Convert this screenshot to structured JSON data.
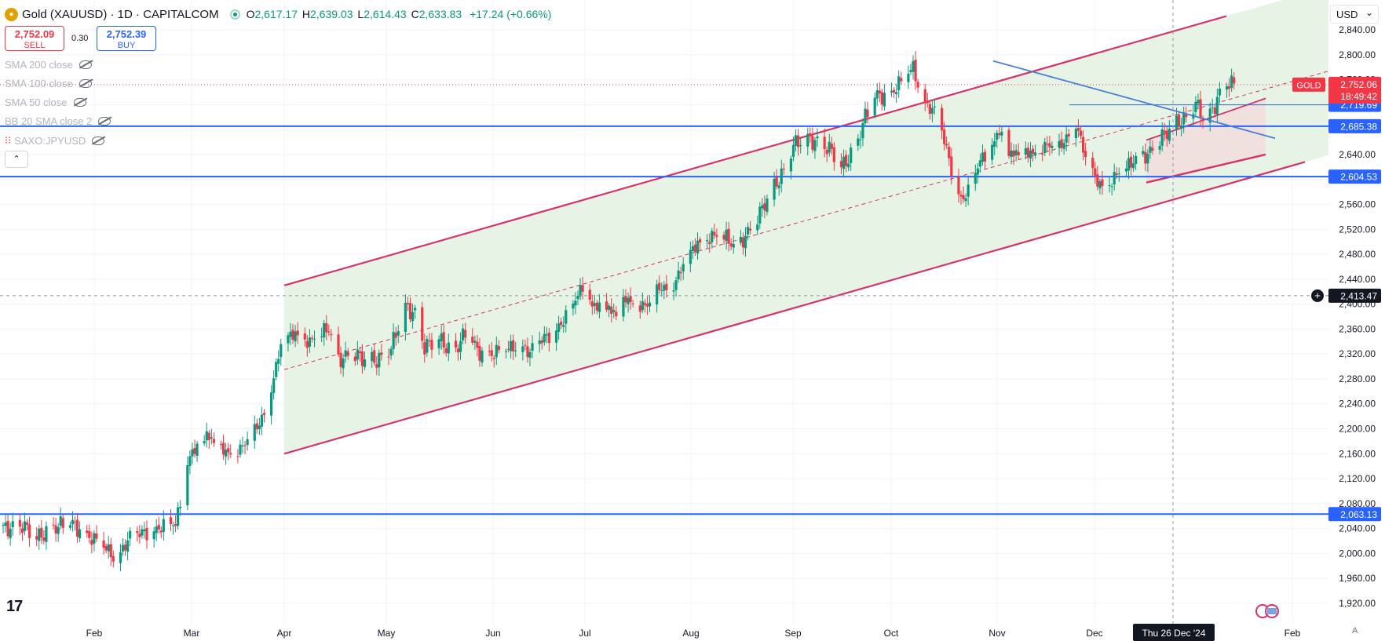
{
  "header": {
    "title": "Gold (XAUUSD) · 1D · CAPITALCOM",
    "open_label": "O",
    "open": "2,617.17",
    "high_label": "H",
    "high": "2,639.03",
    "low_label": "L",
    "low": "2,614.43",
    "close_label": "C",
    "close": "2,633.83",
    "change": "+17.24 (+0.66%)"
  },
  "trade": {
    "sell_price": "2,752.09",
    "sell_label": "SELL",
    "spread": "0.30",
    "buy_price": "2,752.39",
    "buy_label": "BUY"
  },
  "indicators": [
    "SMA 200 close",
    "SMA 100 close",
    "SMA 50 close",
    "BB 20 SMA close 2",
    "SAXO:JPYUSD"
  ],
  "currency": "USD",
  "chart_data": {
    "type": "candlestick",
    "symbol": "GOLD",
    "y_ticks": [
      1920,
      1960,
      2000,
      2040,
      2080,
      2120,
      2160,
      2200,
      2240,
      2280,
      2320,
      2360,
      2400,
      2440,
      2480,
      2520,
      2560,
      2600,
      2640,
      2680,
      2720,
      2760,
      2800,
      2840
    ],
    "y_range": [
      1905,
      2860
    ],
    "x_ticks": [
      "Feb",
      "Mar",
      "Apr",
      "May",
      "Jun",
      "Jul",
      "Aug",
      "Sep",
      "Oct",
      "Nov",
      "Dec",
      "Feb"
    ],
    "current_price": {
      "label": "GOLD",
      "value": "2,752.06",
      "countdown": "18:49:42",
      "color": "#f23645"
    },
    "crosshair": {
      "price": "2,413.47",
      "date": "Thu 26 Dec '24"
    },
    "horizontal_levels": [
      {
        "value": 2719.69,
        "label": "2,719.69",
        "style": "thin"
      },
      {
        "value": 2685.38,
        "label": "2,685.38",
        "style": "thick"
      },
      {
        "value": 2604.53,
        "label": "2,604.53",
        "style": "thick"
      },
      {
        "value": 2063.13,
        "label": "2,063.13",
        "style": "thick"
      }
    ],
    "channel": {
      "start": "Apr",
      "upper_start": 2430,
      "lower_start": 2160,
      "color": "#d6336c",
      "fill": "#e3f2e1"
    },
    "trendline": {
      "from_value": 2790,
      "to_value": 2666,
      "color": "#4a7fd4"
    },
    "colors": {
      "up": "#089981",
      "down": "#f23645",
      "level": "#2962ff"
    }
  }
}
